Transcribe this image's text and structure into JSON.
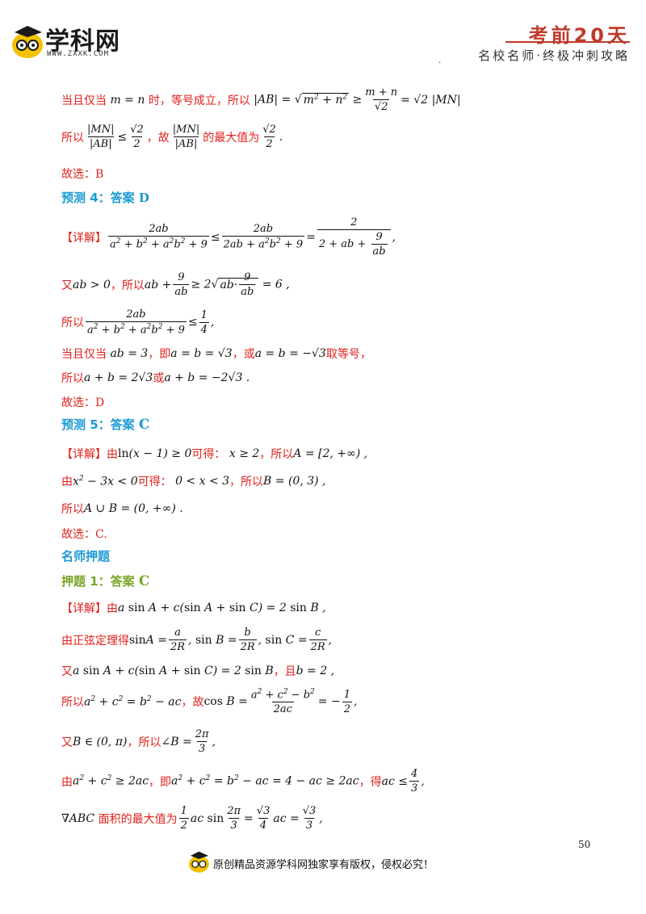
{
  "header": {
    "logo_text": "学科网",
    "logo_url": "WWW.ZXXK.COM",
    "title": "考前20天",
    "subtitle": "名校名师·终极冲刺攻略"
  },
  "content": {
    "l1_a": "当且仅当",
    "l1_b": "时，等号成立，所以",
    "l2_a": "所以",
    "l2_b": "，故",
    "l2_c": "的最大值为",
    "gx1": "故选：B",
    "p4_label": "预测 4：答案",
    "p4_ans": "D",
    "detail": "【详解】",
    "l3_a": "又",
    "l3_b": "，所以",
    "l4_a": "所以",
    "l5_a": "当且仅当",
    "l5_b": "，即",
    "l5_c": "，或",
    "l5_d": "取等号，",
    "l6_a": "所以",
    "l6_b": "或",
    "gx2": "故选：D",
    "p5_label": "预测 5：答案",
    "p5_ans": "C",
    "l7_a": "由",
    "l7_b": "可得：",
    "l7_c": "，所以",
    "l8_a": "由",
    "l8_b": "可得：",
    "l8_c": "，所以",
    "l9_a": "所以",
    "gx3": "故选：C.",
    "section": "名师押题",
    "y1_label": "押题 1：答案",
    "y1_ans": "C",
    "l10_a": "由",
    "l11_a": "由正弦定理得",
    "l12_a": "又",
    "l12_b": "，且",
    "l13_a": "所以",
    "l13_b": "，故",
    "l14_a": "又",
    "l14_b": "，所以",
    "l15_a": "由",
    "l15_b": "，即",
    "l15_c": "，得",
    "l16_b": "面积的最大值为"
  },
  "footer": {
    "page_number": "50",
    "copyright": "原创精品资源学科网独家享有版权，侵权必究！"
  }
}
